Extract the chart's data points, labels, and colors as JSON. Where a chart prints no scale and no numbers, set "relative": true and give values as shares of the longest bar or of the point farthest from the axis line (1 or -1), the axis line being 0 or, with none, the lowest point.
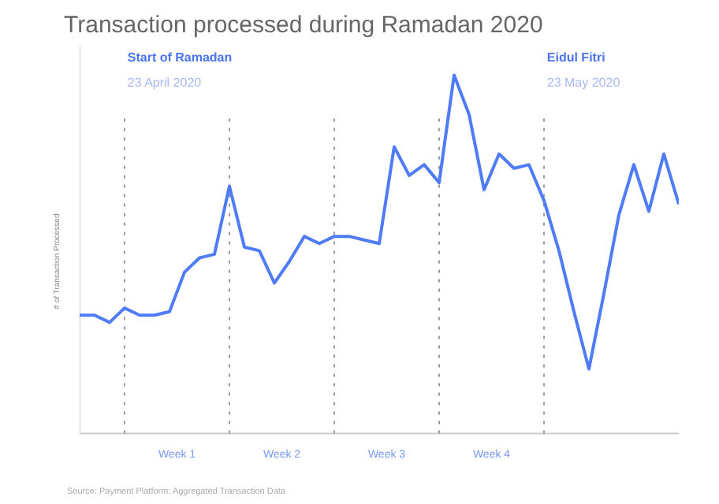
{
  "chart_data": {
    "type": "line",
    "title": "Transaction processed during Ramadan 2020",
    "ylabel": "# of Transaction Processed",
    "relative": true,
    "categories": [
      null,
      null,
      null,
      null,
      null,
      null,
      null,
      null,
      null,
      null,
      null,
      null,
      null,
      null,
      null,
      null,
      null,
      null,
      null,
      null,
      null,
      null,
      null,
      null,
      null,
      null,
      null,
      null,
      null,
      null,
      null,
      null,
      null,
      null,
      null,
      null,
      null,
      null,
      null,
      null,
      null
    ],
    "series": [
      {
        "color": "#4f7bf7",
        "values": [
          0.33,
          0.33,
          0.31,
          0.35,
          0.33,
          0.33,
          0.34,
          0.45,
          0.49,
          0.5,
          0.69,
          0.52,
          0.51,
          0.42,
          0.48,
          0.55,
          0.53,
          0.55,
          0.55,
          0.54,
          0.53,
          0.8,
          0.72,
          0.75,
          0.7,
          1,
          0.89,
          0.68,
          0.78,
          0.74,
          0.75,
          0.65,
          0.51,
          0.34,
          0.18,
          0.39,
          0.61,
          0.75,
          0.62,
          0.78,
          0.64
        ]
      }
    ],
    "annotations": [
      "Start of Ramadan",
      "23 April 2020",
      "Eidul Fitri",
      "23 May 2020",
      "Week 1",
      "Week 2",
      "Week 3",
      "Week 4",
      "Source: Payment Platform: Aggregated Transaction Data"
    ],
    "grid": "x",
    "marker": "none",
    "line_style": "solid"
  }
}
